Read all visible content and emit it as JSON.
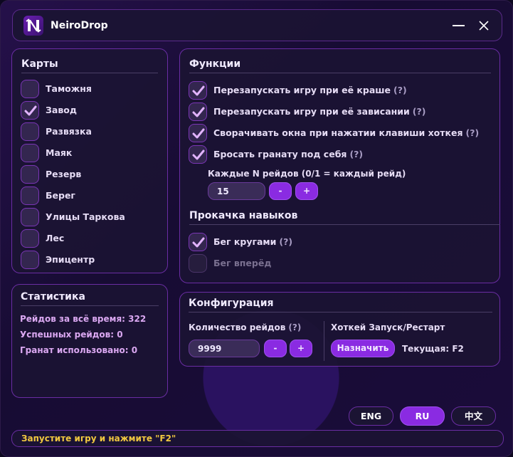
{
  "app": {
    "title": "NeiroDrop",
    "logo_text": "N"
  },
  "window_controls": {
    "minimize": "minimize-icon",
    "close": "close-icon"
  },
  "maps": {
    "title": "Карты",
    "items": [
      {
        "label": "Таможня",
        "checked": false
      },
      {
        "label": "Завод",
        "checked": true
      },
      {
        "label": "Развязка",
        "checked": false
      },
      {
        "label": "Маяк",
        "checked": false
      },
      {
        "label": "Резерв",
        "checked": false
      },
      {
        "label": "Берег",
        "checked": false
      },
      {
        "label": "Улицы Таркова",
        "checked": false
      },
      {
        "label": "Лес",
        "checked": false
      },
      {
        "label": "Эпицентр",
        "checked": false
      }
    ]
  },
  "functions": {
    "title": "Функции",
    "items": [
      {
        "label": "Перезапускать игру при её краше",
        "help": "(?)",
        "checked": true
      },
      {
        "label": "Перезапускать игру при её зависании",
        "help": "(?)",
        "checked": true
      },
      {
        "label": "Сворачивать окна при нажатии клавиши хоткея",
        "help": "(?)",
        "checked": true
      },
      {
        "label": "Бросать гранату под себя",
        "help": "(?)",
        "checked": true
      }
    ],
    "every_n_label": "Каждые N рейдов (0/1 = каждый рейд)",
    "every_n_value": "15",
    "minus": "-",
    "plus": "+"
  },
  "skills": {
    "title": "Прокачка навыков",
    "items": [
      {
        "label": "Бег кругами",
        "help": "(?)",
        "checked": true,
        "disabled": false
      },
      {
        "label": "Бег вперёд",
        "checked": false,
        "disabled": true
      }
    ]
  },
  "stats": {
    "title": "Статистика",
    "lines": [
      "Рейдов за всё время: 322",
      "Успешных рейдов: 0",
      "Гранат использовано: 0"
    ]
  },
  "config": {
    "title": "Конфигурация",
    "raids_label": "Количество рейдов",
    "raids_help": "(?)",
    "raids_value": "9999",
    "minus": "-",
    "plus": "+",
    "hotkey_label": "Хоткей Запуск/Рестарт",
    "assign_button": "Назначить",
    "current": "Текущая: F2"
  },
  "languages": [
    {
      "label": "ENG",
      "active": false
    },
    {
      "label": "RU",
      "active": true
    },
    {
      "label": "中文",
      "active": false
    }
  ],
  "status": {
    "text": "Запустите игру и нажмите \"F2\""
  },
  "colors": {
    "accent": "#8a2be2",
    "border": "#6a2da3",
    "status_text": "#f0c840",
    "stats_text": "#dba8f2"
  }
}
